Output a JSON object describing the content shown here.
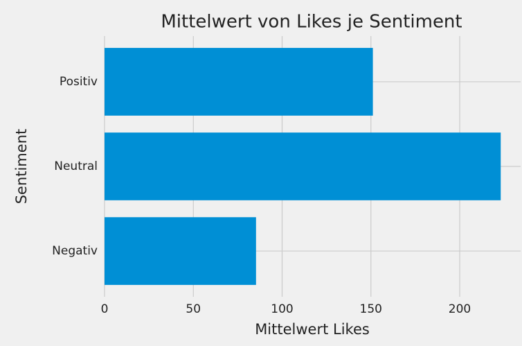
{
  "chart_data": {
    "type": "barh",
    "title": "Mittelwert von Likes je Sentiment",
    "x_label": "Mittelwert Likes",
    "y_label": "Sentiment",
    "categories": [
      "Negativ",
      "Neutral",
      "Positiv"
    ],
    "values": [
      85.3,
      223.1,
      151.1
    ],
    "color": "#008fd5",
    "xlim": [
      0,
      234.3
    ],
    "xticks": [
      0,
      50,
      100,
      150,
      200
    ],
    "grid": true
  }
}
